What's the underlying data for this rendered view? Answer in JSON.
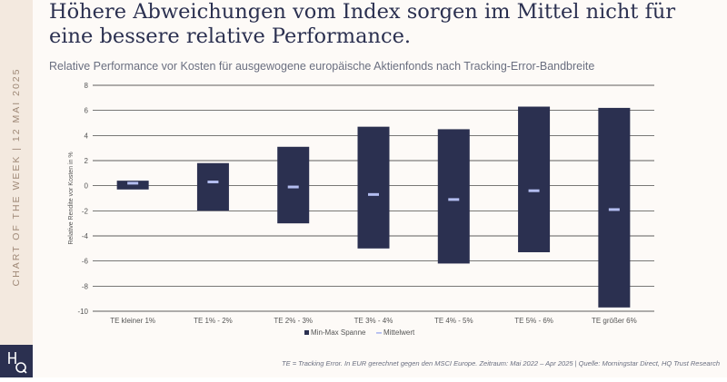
{
  "side_label": "CHART OF THE WEEK | 12 MAI 2025",
  "logo_text": "HQ",
  "title": "Höhere Abweichungen vom Index sorgen im Mittel nicht für eine bessere relative Performance.",
  "subtitle": "Relative Performance vor Kosten für ausgewogene europäische Aktienfonds nach Tracking-Error-Bandbreite",
  "footnote": "TE = Tracking Error. In EUR gerechnet gegen den MSCI Europe. Zeitraum: Mai 2022 – Apr 2025 | Quelle: Morningstar Direct, HQ Trust Research",
  "colors": {
    "bar": "#2b3050",
    "mean": "#b3bdf0",
    "grid": "#2a2a2a",
    "text": "#555555"
  },
  "chart_data": {
    "type": "bar",
    "ylabel": "Relative Rendite vor Kosten in %",
    "ylim": [
      -10,
      8
    ],
    "yticks": [
      8,
      6,
      4,
      2,
      0,
      -2,
      -4,
      -6,
      -8,
      -10
    ],
    "grid": true,
    "legend_placement": "bottom",
    "categories": [
      "TE kleiner 1%",
      "TE 1% - 2%",
      "TE 2% - 3%",
      "TE 3% - 4%",
      "TE 4% - 5%",
      "TE 5% - 6%",
      "TE größer 6%"
    ],
    "series": [
      {
        "name": "Min-Max Spanne",
        "min": [
          -0.3,
          -2.0,
          -3.0,
          -5.0,
          -6.2,
          -5.3,
          -9.7
        ],
        "max": [
          0.4,
          1.8,
          3.1,
          4.7,
          4.5,
          6.3,
          6.2
        ]
      },
      {
        "name": "Mittelwert",
        "values": [
          0.2,
          0.3,
          -0.1,
          -0.7,
          -1.1,
          -0.4,
          -1.9
        ]
      }
    ]
  }
}
